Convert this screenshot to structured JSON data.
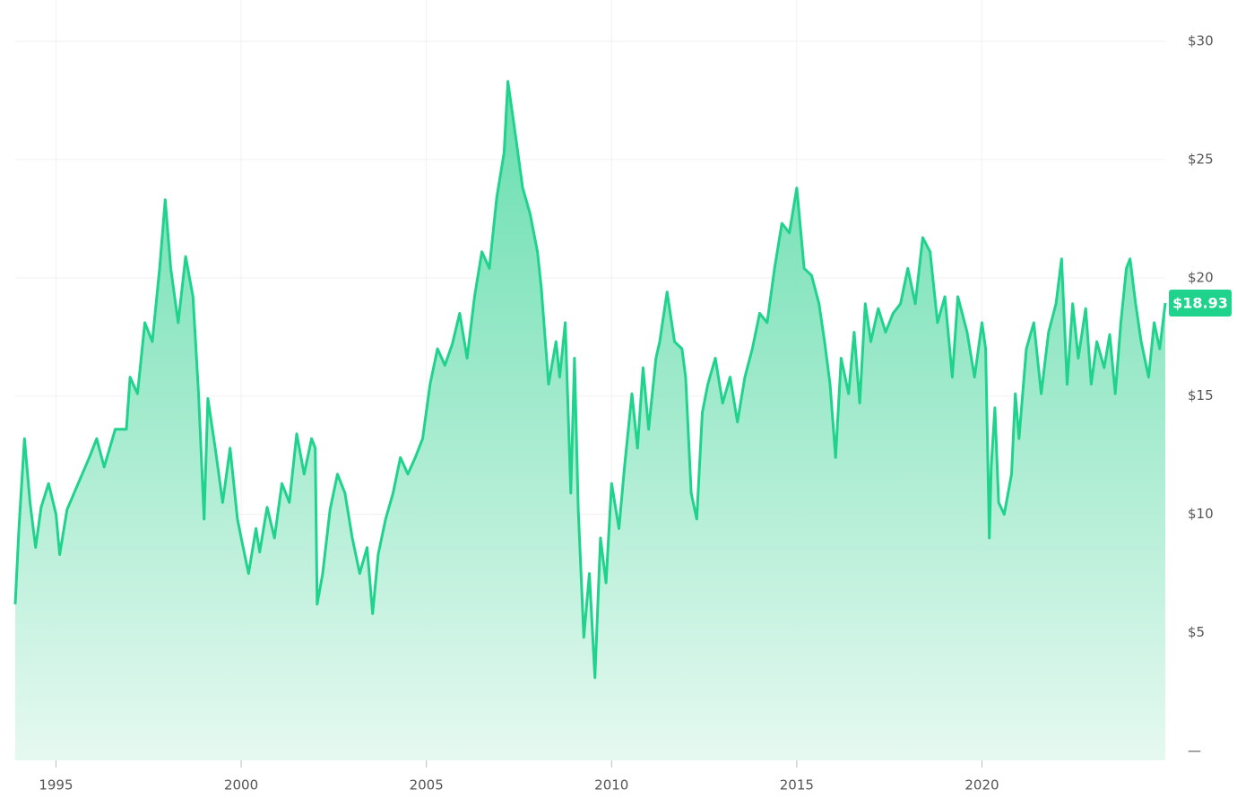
{
  "chart_data": {
    "type": "area",
    "x": [
      1993.9,
      1994.0,
      1994.15,
      1994.3,
      1994.45,
      1994.6,
      1994.8,
      1995.0,
      1995.1,
      1995.3,
      1995.6,
      1995.9,
      1996.1,
      1996.3,
      1996.6,
      1996.9,
      1997.0,
      1997.2,
      1997.4,
      1997.6,
      1997.8,
      1997.95,
      1998.1,
      1998.3,
      1998.5,
      1998.7,
      1998.85,
      1999.0,
      1999.1,
      1999.3,
      1999.5,
      1999.7,
      1999.9,
      2000.0,
      2000.2,
      2000.4,
      2000.5,
      2000.7,
      2000.9,
      2001.1,
      2001.3,
      2001.5,
      2001.7,
      2001.9,
      2002.0,
      2002.05,
      2002.2,
      2002.4,
      2002.6,
      2002.8,
      2003.0,
      2003.2,
      2003.4,
      2003.55,
      2003.7,
      2003.9,
      2004.1,
      2004.3,
      2004.5,
      2004.7,
      2004.9,
      2005.1,
      2005.3,
      2005.5,
      2005.7,
      2005.9,
      2006.1,
      2006.3,
      2006.5,
      2006.7,
      2006.9,
      2007.1,
      2007.2,
      2007.4,
      2007.6,
      2007.8,
      2008.0,
      2008.1,
      2008.3,
      2008.5,
      2008.6,
      2008.75,
      2008.9,
      2009.0,
      2009.1,
      2009.25,
      2009.4,
      2009.55,
      2009.7,
      2009.85,
      2010.0,
      2010.2,
      2010.35,
      2010.55,
      2010.7,
      2010.85,
      2011.0,
      2011.2,
      2011.3,
      2011.5,
      2011.7,
      2011.9,
      2012.0,
      2012.15,
      2012.3,
      2012.45,
      2012.6,
      2012.8,
      2013.0,
      2013.2,
      2013.4,
      2013.6,
      2013.8,
      2014.0,
      2014.2,
      2014.4,
      2014.6,
      2014.8,
      2015.0,
      2015.2,
      2015.4,
      2015.6,
      2015.75,
      2015.9,
      2016.05,
      2016.2,
      2016.4,
      2016.55,
      2016.7,
      2016.85,
      2017.0,
      2017.2,
      2017.4,
      2017.6,
      2017.8,
      2018.0,
      2018.2,
      2018.4,
      2018.6,
      2018.8,
      2019.0,
      2019.2,
      2019.35,
      2019.6,
      2019.8,
      2020.0,
      2020.1,
      2020.2,
      2020.25,
      2020.35,
      2020.45,
      2020.6,
      2020.8,
      2020.9,
      2021.0,
      2021.2,
      2021.4,
      2021.6,
      2021.8,
      2022.0,
      2022.15,
      2022.3,
      2022.45,
      2022.6,
      2022.8,
      2022.95,
      2023.1,
      2023.3,
      2023.45,
      2023.6,
      2023.75,
      2023.9,
      2024.0,
      2024.15,
      2024.3,
      2024.5,
      2024.65,
      2024.8,
      2024.95
    ],
    "values": [
      6.2,
      9.4,
      13.2,
      10.5,
      8.6,
      10.3,
      11.3,
      10.0,
      8.3,
      10.2,
      11.3,
      12.4,
      13.2,
      12.0,
      13.6,
      13.6,
      15.8,
      15.1,
      18.1,
      17.3,
      20.4,
      23.3,
      20.4,
      18.1,
      20.9,
      19.2,
      15.1,
      9.8,
      14.9,
      12.8,
      10.5,
      12.8,
      9.8,
      9.0,
      7.5,
      9.4,
      8.4,
      10.3,
      9.0,
      11.3,
      10.5,
      13.4,
      11.7,
      13.2,
      12.8,
      6.2,
      7.5,
      10.2,
      11.7,
      10.9,
      9.0,
      7.5,
      8.6,
      5.8,
      8.3,
      9.8,
      10.9,
      12.4,
      11.7,
      12.4,
      13.2,
      15.5,
      17.0,
      16.3,
      17.2,
      18.5,
      16.6,
      19.2,
      21.1,
      20.4,
      23.4,
      25.3,
      28.3,
      26.1,
      23.8,
      22.7,
      21.1,
      19.6,
      15.5,
      17.3,
      15.8,
      18.1,
      10.9,
      16.6,
      10.2,
      4.8,
      7.5,
      3.1,
      9.0,
      7.1,
      11.3,
      9.4,
      12.0,
      15.1,
      12.8,
      16.2,
      13.6,
      16.6,
      17.3,
      19.4,
      17.3,
      17.0,
      15.8,
      10.9,
      9.8,
      14.3,
      15.5,
      16.6,
      14.7,
      15.8,
      13.9,
      15.8,
      17.0,
      18.5,
      18.1,
      20.4,
      22.3,
      21.9,
      23.8,
      20.4,
      20.1,
      18.9,
      17.3,
      15.5,
      12.4,
      16.6,
      15.1,
      17.7,
      14.7,
      18.9,
      17.3,
      18.7,
      17.7,
      18.5,
      18.9,
      20.4,
      18.9,
      21.7,
      21.1,
      18.1,
      19.2,
      15.8,
      19.2,
      17.7,
      15.8,
      18.1,
      17.0,
      9.0,
      12.0,
      14.5,
      10.5,
      10.0,
      11.7,
      15.1,
      13.2,
      17.0,
      18.1,
      15.1,
      17.7,
      18.9,
      20.8,
      15.5,
      18.9,
      16.6,
      18.7,
      15.5,
      17.3,
      16.2,
      17.6,
      15.1,
      18.1,
      20.4,
      20.8,
      18.9,
      17.3,
      15.8,
      18.1,
      17.0,
      18.93
    ],
    "color": "#1fd38c",
    "xlim": [
      1993.9,
      2024.95
    ],
    "xticks": [
      1995,
      2000,
      2005,
      2010,
      2015,
      2020
    ],
    "ylim": [
      -0.4,
      30
    ],
    "yticks": [
      {
        "value": 0,
        "label": "—"
      },
      {
        "value": 5,
        "label": "$5"
      },
      {
        "value": 10,
        "label": "$10"
      },
      {
        "value": 15,
        "label": "$15"
      },
      {
        "value": 20,
        "label": "$20"
      },
      {
        "value": 25,
        "label": "$25"
      },
      {
        "value": 30,
        "label": "$30"
      }
    ],
    "grid": true,
    "current_price": 18.93,
    "current_price_label": "$18.93"
  }
}
